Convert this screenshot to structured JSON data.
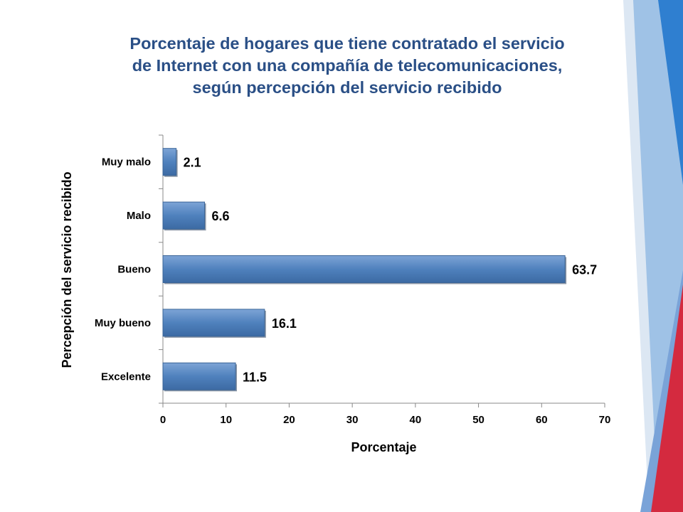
{
  "title_lines": [
    "Porcentaje de hogares que tiene contratado el servicio",
    "de Internet con una compañía de telecomunicaciones,",
    "según percepción del servicio recibido"
  ],
  "colors": {
    "title": "#2a4f86",
    "bar": "#4f81bd",
    "accent_blue": "#2f7fd0",
    "accent_red": "#d42a3f"
  },
  "chart_data": {
    "type": "bar",
    "orientation": "horizontal",
    "title": "Porcentaje de hogares que tiene contratado el servicio de Internet con una compañía de telecomunicaciones, según percepción del servicio recibido",
    "categories": [
      "Muy malo",
      "Malo",
      "Bueno",
      "Muy bueno",
      "Excelente"
    ],
    "values": [
      2.1,
      6.6,
      63.7,
      16.1,
      11.5
    ],
    "value_labels": [
      "2.1",
      "6.6",
      "63.7",
      "16.1",
      "11.5"
    ],
    "xlabel": "Porcentaje",
    "ylabel": "Percepción del servicio recibido",
    "xlim": [
      0,
      70
    ],
    "xticks": [
      0,
      10,
      20,
      30,
      40,
      50,
      60,
      70
    ],
    "grid": false,
    "legend": "none"
  }
}
